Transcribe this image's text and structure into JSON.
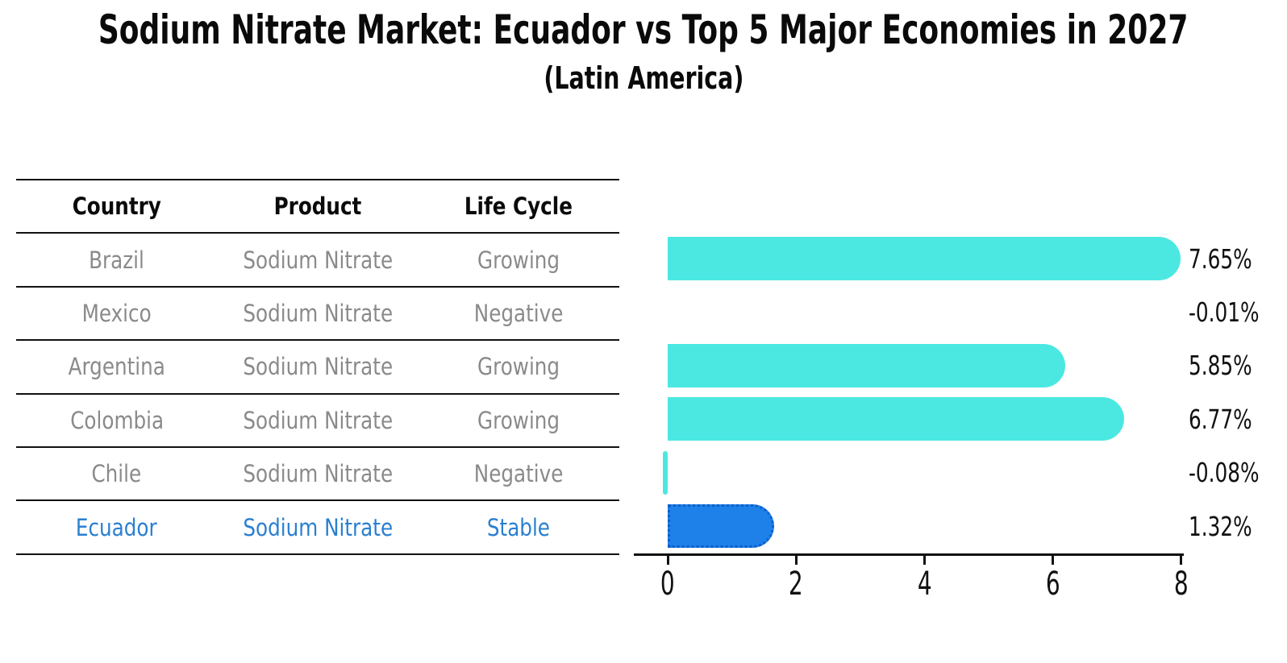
{
  "title": "Sodium Nitrate Market: Ecuador vs Top 5 Major Economies in 2027",
  "subtitle": "(Latin America)",
  "table": {
    "headers": [
      "Country",
      "Product",
      "Life Cycle"
    ],
    "rows": [
      {
        "country": "Brazil",
        "product": "Sodium Nitrate",
        "life_cycle": "Growing",
        "highlight": false
      },
      {
        "country": "Mexico",
        "product": "Sodium Nitrate",
        "life_cycle": "Negative",
        "highlight": false
      },
      {
        "country": "Argentina",
        "product": "Sodium Nitrate",
        "life_cycle": "Growing",
        "highlight": false
      },
      {
        "country": "Colombia",
        "product": "Sodium Nitrate",
        "life_cycle": "Growing",
        "highlight": false
      },
      {
        "country": "Chile",
        "product": "Sodium Nitrate",
        "life_cycle": "Negative",
        "highlight": false
      },
      {
        "country": "Ecuador",
        "product": "Sodium Nitrate",
        "life_cycle": "Stable",
        "highlight": true
      }
    ]
  },
  "chart_data": {
    "type": "bar",
    "orientation": "horizontal",
    "categories": [
      "Brazil",
      "Mexico",
      "Argentina",
      "Colombia",
      "Chile",
      "Ecuador"
    ],
    "values": [
      7.65,
      -0.01,
      5.85,
      6.77,
      -0.08,
      1.32
    ],
    "value_labels": [
      "7.65%",
      "-0.01%",
      "5.85%",
      "6.77%",
      "-0.08%",
      "1.32%"
    ],
    "x_ticks": [
      0,
      2,
      4,
      6,
      8
    ],
    "xlim": [
      0,
      8
    ],
    "grid": false,
    "legend": "none",
    "highlight_category": "Ecuador",
    "colors": {
      "bar": "#4be8e2",
      "highlight_bar": "#1e80e9",
      "highlight_bar_border": "#0d5fc8",
      "highlight_text": "#2a7fd0",
      "table_text": "#8a8a8a",
      "axis_text": "#111111"
    }
  }
}
